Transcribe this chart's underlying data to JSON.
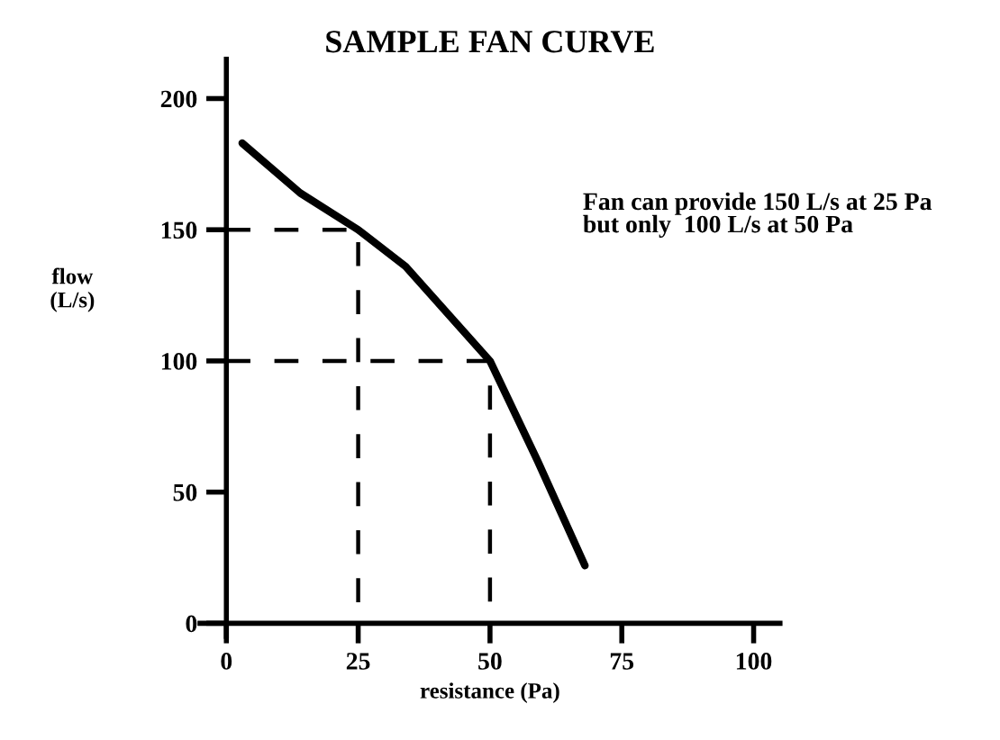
{
  "chart_data": {
    "type": "line",
    "title": "SAMPLE FAN CURVE",
    "xlabel": "resistance (Pa)",
    "ylabel": "flow\n(L/s)",
    "annotations": [
      "Fan can provide 150 L/s at 25 Pa\nbut only  100 L/s at 50 Pa"
    ],
    "series": [
      {
        "color": "#000000",
        "x": [
          3,
          14,
          25,
          34,
          50,
          59,
          68
        ],
        "values": [
          183,
          164,
          150,
          136,
          100,
          62,
          22
        ],
        "line_style": "solid"
      },
      {
        "color": "#000000",
        "x": [
          0,
          25,
          25
        ],
        "values": [
          150,
          150,
          0
        ],
        "line_style": "dashed"
      },
      {
        "color": "#000000",
        "x": [
          0,
          50,
          50
        ],
        "values": [
          100,
          100,
          0
        ],
        "line_style": "dashed"
      }
    ],
    "xlim": [
      -5,
      105
    ],
    "ylim": [
      -5,
      215
    ],
    "xticks": [
      0,
      25,
      50,
      75,
      100
    ],
    "yticks": [
      0,
      50,
      100,
      150,
      200
    ],
    "grid": false,
    "legend": false
  }
}
